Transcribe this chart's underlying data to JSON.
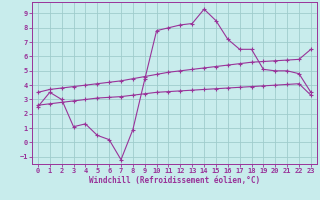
{
  "xlabel": "Windchill (Refroidissement éolien,°C)",
  "bg_color": "#c8ecec",
  "grid_color": "#a0cccc",
  "line_color": "#993399",
  "xlim": [
    -0.5,
    23.5
  ],
  "ylim": [
    -1.5,
    9.8
  ],
  "xticks": [
    0,
    1,
    2,
    3,
    4,
    5,
    6,
    7,
    8,
    9,
    10,
    11,
    12,
    13,
    14,
    15,
    16,
    17,
    18,
    19,
    20,
    21,
    22,
    23
  ],
  "yticks": [
    -1,
    0,
    1,
    2,
    3,
    4,
    5,
    6,
    7,
    8,
    9
  ],
  "curve1_x": [
    0,
    1,
    2,
    3,
    4,
    5,
    6,
    7,
    8,
    9,
    10,
    11,
    12,
    13,
    14,
    15,
    16,
    17,
    18,
    19,
    20,
    21,
    22,
    23
  ],
  "curve1_y": [
    2.5,
    3.5,
    3.0,
    1.1,
    1.3,
    0.5,
    0.2,
    -1.2,
    0.9,
    4.4,
    7.8,
    8.0,
    8.2,
    8.3,
    9.3,
    8.5,
    7.2,
    6.5,
    6.5,
    5.1,
    5.0,
    5.0,
    4.8,
    3.5
  ],
  "curve2_x": [
    0,
    1,
    2,
    3,
    4,
    5,
    6,
    7,
    8,
    9,
    10,
    11,
    12,
    13,
    14,
    15,
    16,
    17,
    18,
    19,
    20,
    21,
    22,
    23
  ],
  "curve2_y": [
    2.6,
    2.7,
    2.8,
    2.9,
    3.0,
    3.1,
    3.15,
    3.2,
    3.3,
    3.4,
    3.5,
    3.55,
    3.6,
    3.65,
    3.7,
    3.75,
    3.8,
    3.85,
    3.9,
    3.95,
    4.0,
    4.05,
    4.1,
    3.3
  ],
  "curve3_x": [
    0,
    1,
    2,
    3,
    4,
    5,
    6,
    7,
    8,
    9,
    10,
    11,
    12,
    13,
    14,
    15,
    16,
    17,
    18,
    19,
    20,
    21,
    22,
    23
  ],
  "curve3_y": [
    3.5,
    3.7,
    3.8,
    3.9,
    4.0,
    4.1,
    4.2,
    4.3,
    4.45,
    4.6,
    4.75,
    4.9,
    5.0,
    5.1,
    5.2,
    5.3,
    5.4,
    5.5,
    5.6,
    5.65,
    5.7,
    5.75,
    5.8,
    6.5
  ]
}
